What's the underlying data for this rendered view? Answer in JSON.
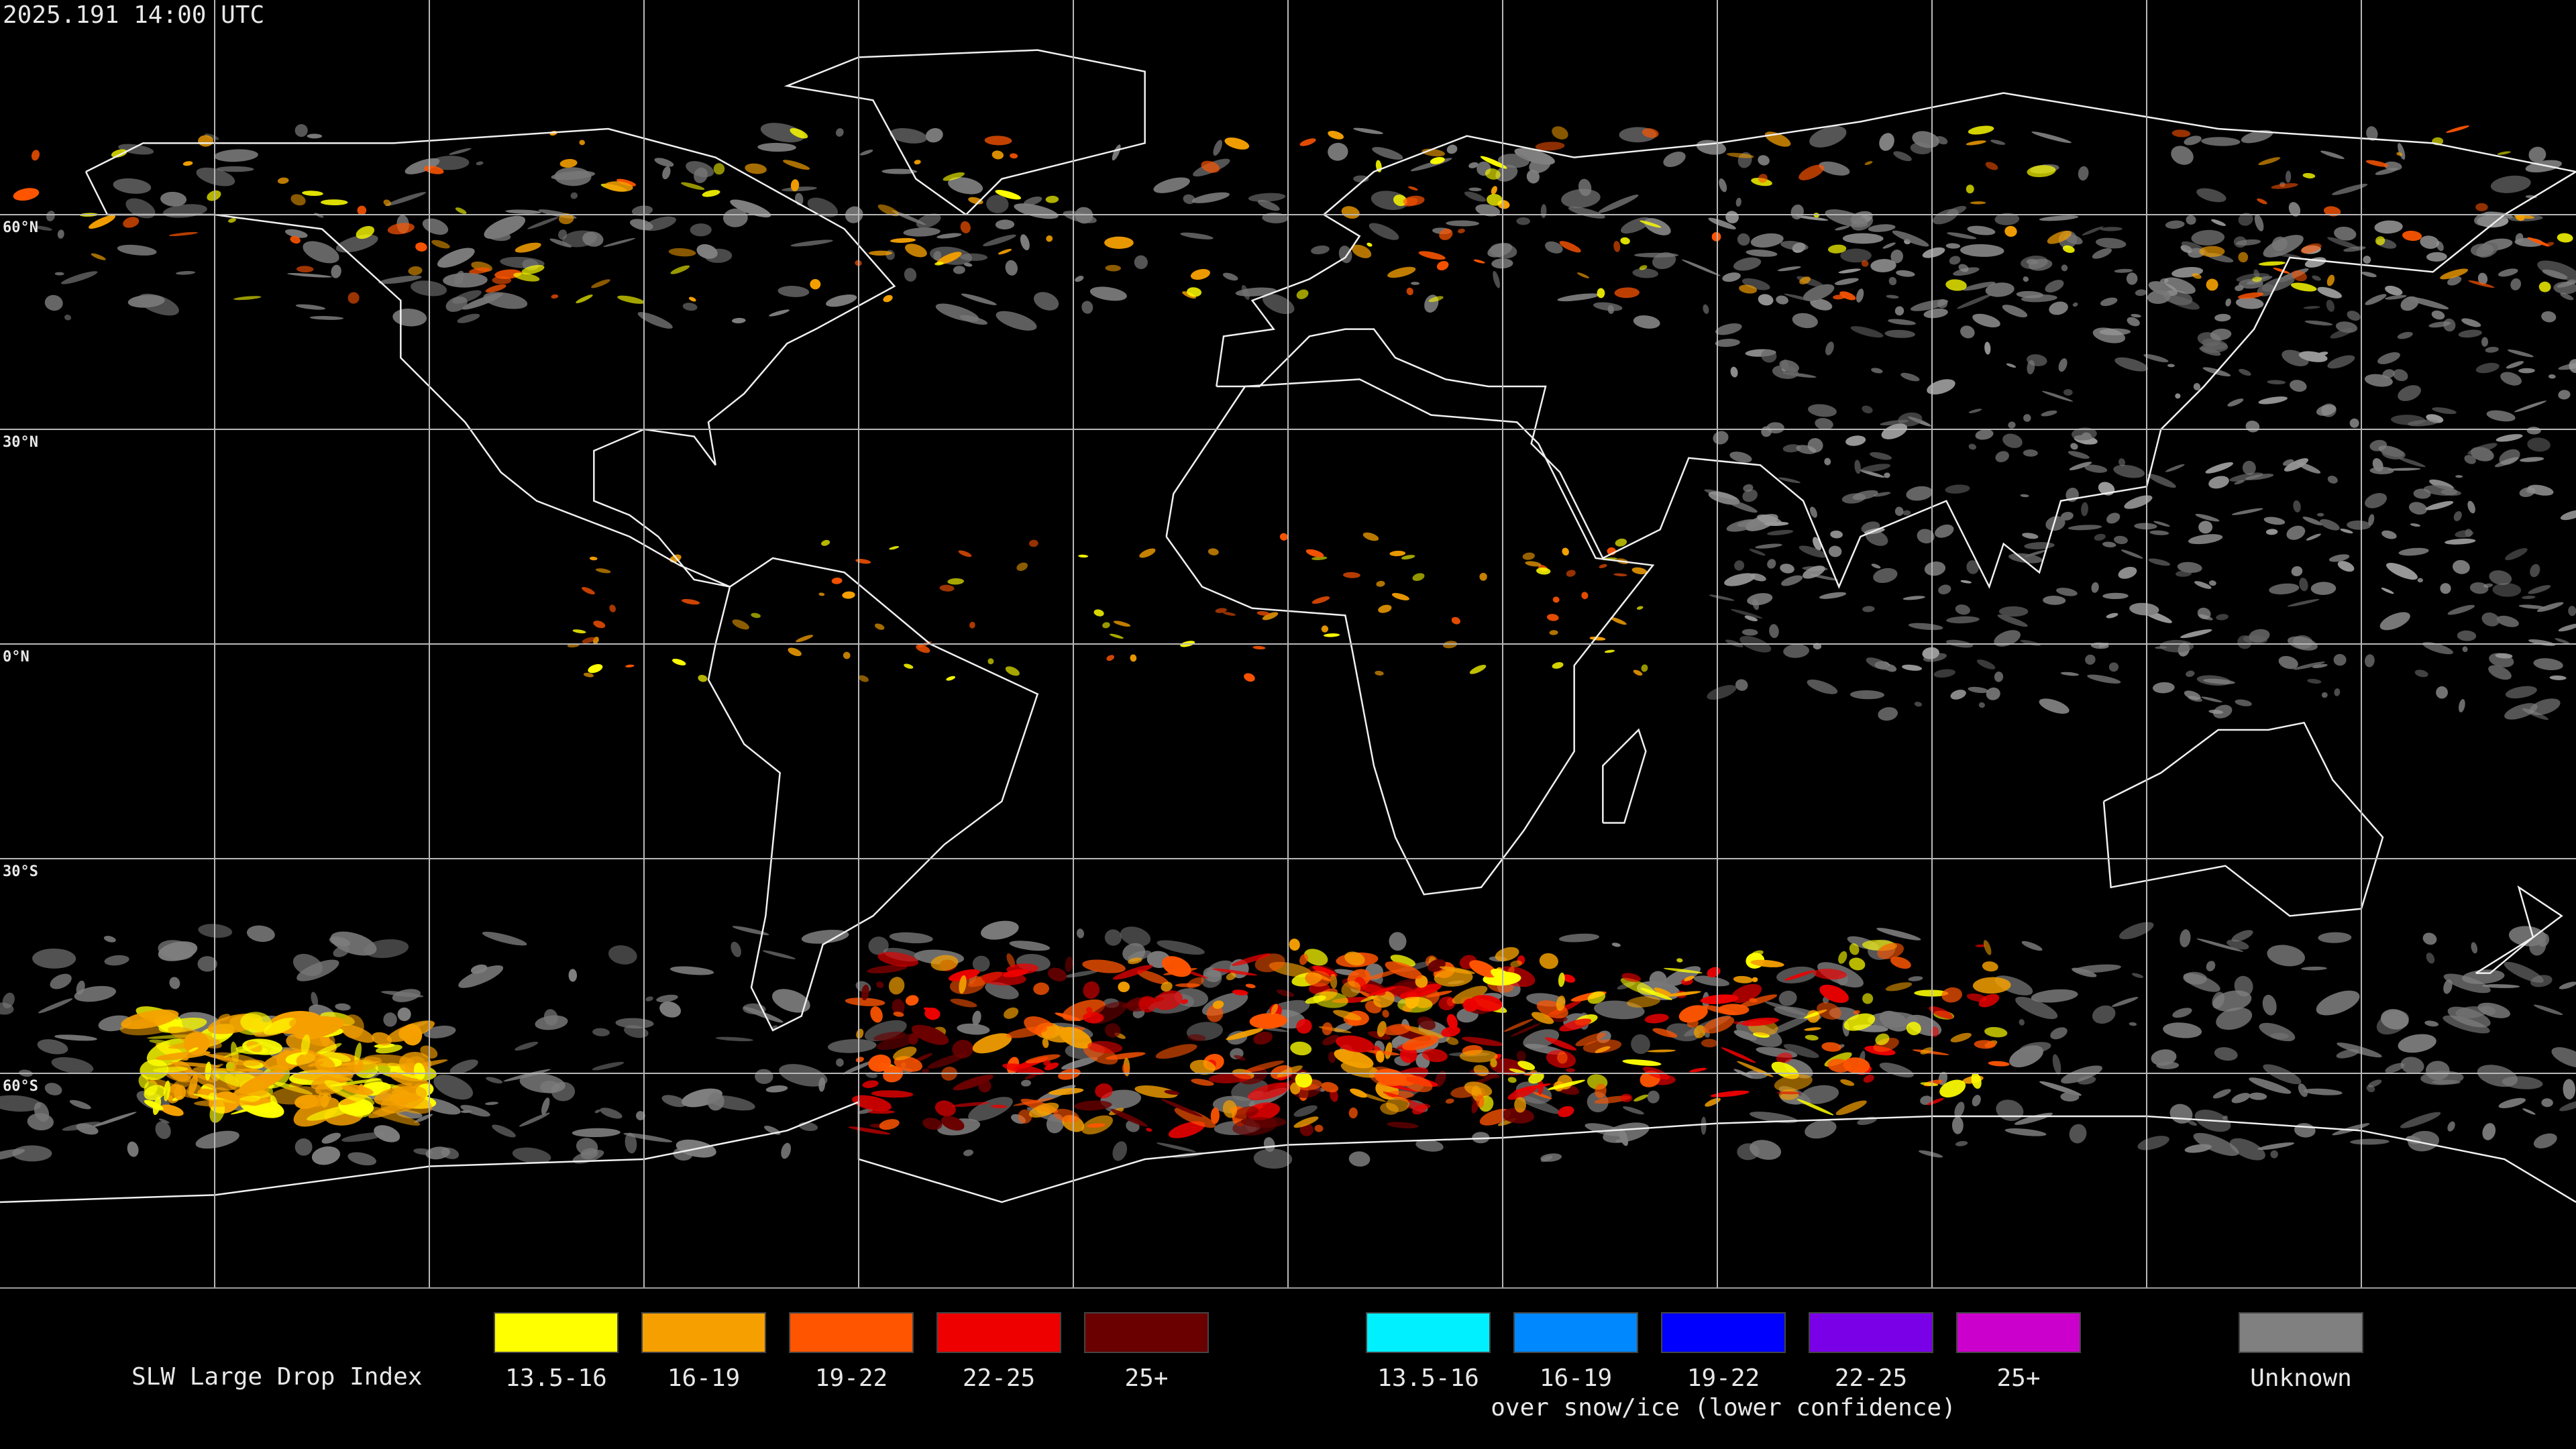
{
  "timestamp": "2025.191 14:00 UTC",
  "latitude_labels": [
    "60°N",
    "30°N",
    "0°N",
    "30°S",
    "60°S"
  ],
  "legend": {
    "title": "SLW Large Drop Index",
    "groups": [
      {
        "items": [
          {
            "label": "13.5-16",
            "color": "#ffff00"
          },
          {
            "label": "16-19",
            "color": "#f5a000"
          },
          {
            "label": "19-22",
            "color": "#ff5500"
          },
          {
            "label": "22-25",
            "color": "#ee0000"
          },
          {
            "label": "25+",
            "color": "#6a0000"
          }
        ]
      },
      {
        "items": [
          {
            "label": "13.5-16",
            "color": "#00f0ff"
          },
          {
            "label": "16-19",
            "color": "#0088ff"
          },
          {
            "label": "19-22",
            "color": "#0000ff"
          },
          {
            "label": "22-25",
            "color": "#7a00e8"
          },
          {
            "label": "25+",
            "color": "#cc00cc"
          }
        ],
        "caption": "over snow/ice (lower confidence)"
      },
      {
        "items": [
          {
            "label": "Unknown",
            "color": "#808080"
          }
        ]
      }
    ]
  }
}
